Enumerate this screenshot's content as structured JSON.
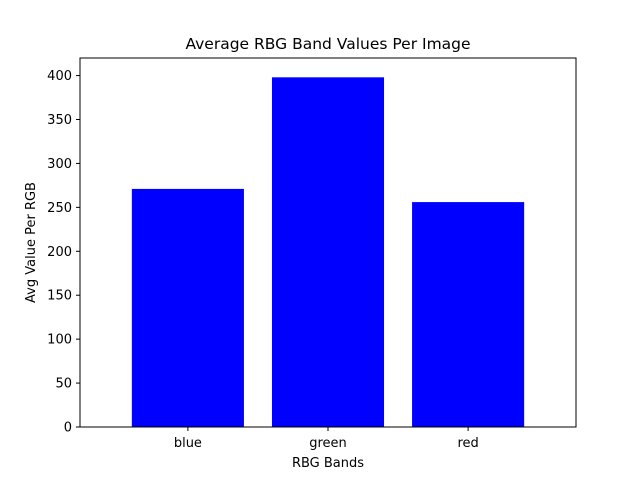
{
  "chart_data": {
    "type": "bar",
    "title": "Average RBG Band Values Per Image",
    "xlabel": "RBG Bands",
    "ylabel": "Avg Value Per RGB",
    "categories": [
      "blue",
      "green",
      "red"
    ],
    "values": [
      271,
      398,
      256
    ],
    "ylim": [
      0,
      420
    ],
    "yticks": [
      0,
      50,
      100,
      150,
      200,
      250,
      300,
      350,
      400
    ],
    "grid": false,
    "bar_color": "#0000ff"
  }
}
